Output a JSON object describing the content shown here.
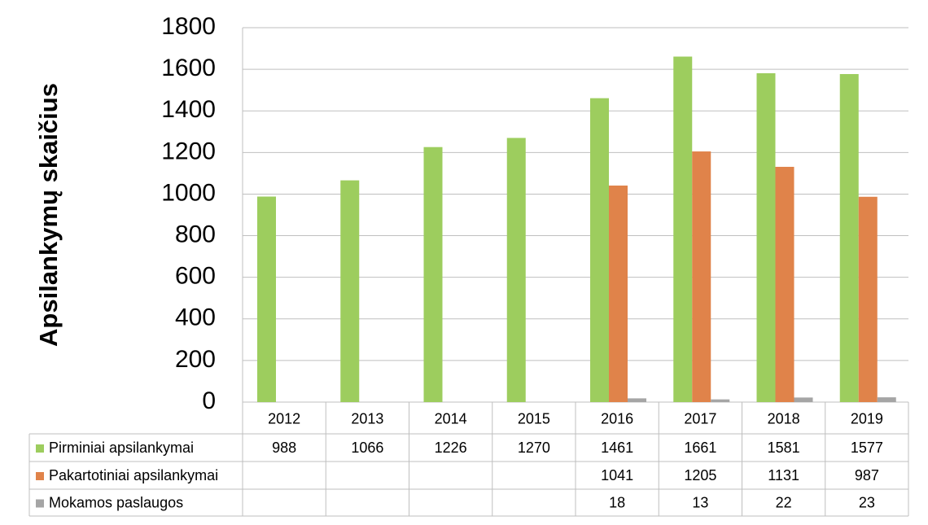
{
  "chart_data": {
    "type": "bar",
    "y_label": "Apsilankymų skaičius",
    "categories": [
      "2012",
      "2013",
      "2014",
      "2015",
      "2016",
      "2017",
      "2018",
      "2019"
    ],
    "series": [
      {
        "name": "Pirminiai apsilankymai",
        "color": "#9dcd5e",
        "values": [
          988,
          1066,
          1226,
          1270,
          1461,
          1661,
          1581,
          1577
        ]
      },
      {
        "name": "Pakartotiniai apsilankymai",
        "color": "#e0834a",
        "values": [
          null,
          null,
          null,
          null,
          1041,
          1205,
          1131,
          987
        ]
      },
      {
        "name": "Mokamos paslaugos",
        "color": "#a5a5a5",
        "values": [
          null,
          null,
          null,
          null,
          18,
          13,
          22,
          23
        ]
      }
    ],
    "ylim": [
      0,
      1800
    ],
    "yticks": [
      0,
      200,
      400,
      600,
      800,
      1000,
      1200,
      1400,
      1600,
      1800
    ],
    "grid": true
  }
}
